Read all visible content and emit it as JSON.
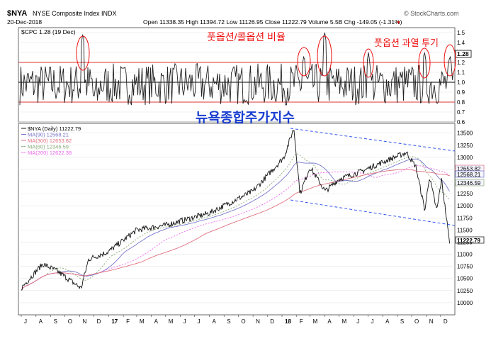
{
  "header": {
    "ticker": "$NYA",
    "name": "NYSE Composite Index INDX",
    "date": "20-Dec-2018",
    "stats": "Open 11338.35  High 11394.72  Low 11126.95  Close 11222.79  Volume 5.5B  Chg -149.05 (-1.31%)",
    "arrow": "▼",
    "watermark": "© StockCharts.com"
  },
  "annotations": {
    "ratio_title": "풋옵션/콜옵션 비율",
    "overbuy_title": "풋옵션 과열 투기",
    "index_title": "뉴욕종합주가지수"
  },
  "colors": {
    "price": "#111111",
    "ma90": "#7777cc",
    "ma300": "#e07080",
    "ma60": "#88aa77",
    "ma200": "#ee66ee",
    "annotation_red": "#ee1111",
    "annotation_blue": "#1a3fd0",
    "channel": "#3355ee",
    "hline": "#dd3333"
  },
  "chart_data": [
    {
      "type": "line",
      "title": "$CPC 1.28 (19 Dec)",
      "ylim": [
        0.6,
        1.55
      ],
      "y_ticks": [
        "1.5",
        "1.4",
        "1.3",
        "1.2",
        "1.1",
        "1.0",
        "0.9",
        "0.8",
        "0.7",
        "0.6"
      ],
      "last_value_label": "1.28",
      "reference_lines": [
        1.2,
        1.0,
        0.8
      ],
      "x": [
        "Jul 2016",
        "Dec 2018"
      ],
      "series": [
        {
          "name": "$CPC",
          "description_values": "daily CPC ratio fluctuating mostly 0.75–1.25, spikes ~1.5 in Nov 2016, ~1.3 Feb 2018, ~1.5 Mar 2018, ~1.3 Jun 2018, ~1.3 Oct 2018, 1.28 Dec 2018"
        }
      ]
    },
    {
      "type": "line",
      "title": "$NYA (Daily) 11222.79",
      "ylim": [
        9750,
        13700
      ],
      "y_ticks": [
        "13500",
        "13250",
        "13000",
        "12750",
        "12500",
        "12250",
        "12000",
        "11750",
        "11500",
        "11250",
        "11000",
        "10750",
        "10500",
        "10250",
        "10000"
      ],
      "x_ticks": [
        "J",
        "A",
        "S",
        "O",
        "N",
        "D",
        "17",
        "F",
        "M",
        "A",
        "M",
        "J",
        "J",
        "A",
        "S",
        "O",
        "N",
        "D",
        "18",
        "F",
        "M",
        "A",
        "M",
        "J",
        "J",
        "A",
        "S",
        "O",
        "N",
        "D"
      ],
      "x_range": [
        "2016-07",
        "2018-12"
      ],
      "series": [
        {
          "name": "MA(90)",
          "last": "12568.21"
        },
        {
          "name": "MA(300)",
          "last": "12653.82"
        },
        {
          "name": "MA(60)",
          "last": "12346.59"
        },
        {
          "name": "MA(200)",
          "last": "12622.38"
        }
      ],
      "legend": [
        {
          "label": "$NYA (Daily) 11222.79"
        },
        {
          "label": "MA(90) 12568.21"
        },
        {
          "label": "MA(300) 12653.82"
        },
        {
          "label": "MA(60) 12346.59"
        },
        {
          "label": "MA(200) 12622.38"
        }
      ],
      "right_labels": [
        "12653.82",
        "12568.21",
        "12346.59",
        "11222.79"
      ],
      "price_anchors": [
        {
          "date": "2016-07-01",
          "close": 10300
        },
        {
          "date": "2016-08-15",
          "close": 10800
        },
        {
          "date": "2016-09-15",
          "close": 10650
        },
        {
          "date": "2016-11-04",
          "close": 10300
        },
        {
          "date": "2016-11-20",
          "close": 10900
        },
        {
          "date": "2016-12-31",
          "close": 11050
        },
        {
          "date": "2017-03-01",
          "close": 11500
        },
        {
          "date": "2017-05-01",
          "close": 11600
        },
        {
          "date": "2017-08-01",
          "close": 11850
        },
        {
          "date": "2017-11-01",
          "close": 12300
        },
        {
          "date": "2018-01-05",
          "close": 13000
        },
        {
          "date": "2018-01-26",
          "close": 13600
        },
        {
          "date": "2018-02-08",
          "close": 12250
        },
        {
          "date": "2018-03-01",
          "close": 12800
        },
        {
          "date": "2018-04-02",
          "close": 12300
        },
        {
          "date": "2018-05-01",
          "close": 12550
        },
        {
          "date": "2018-06-15",
          "close": 12700
        },
        {
          "date": "2018-08-01",
          "close": 12900
        },
        {
          "date": "2018-09-20",
          "close": 13100
        },
        {
          "date": "2018-10-10",
          "close": 12800
        },
        {
          "date": "2018-10-29",
          "close": 11900
        },
        {
          "date": "2018-11-07",
          "close": 12600
        },
        {
          "date": "2018-11-23",
          "close": 11900
        },
        {
          "date": "2018-12-03",
          "close": 12550
        },
        {
          "date": "2018-12-20",
          "close": 11222.79
        }
      ]
    }
  ]
}
